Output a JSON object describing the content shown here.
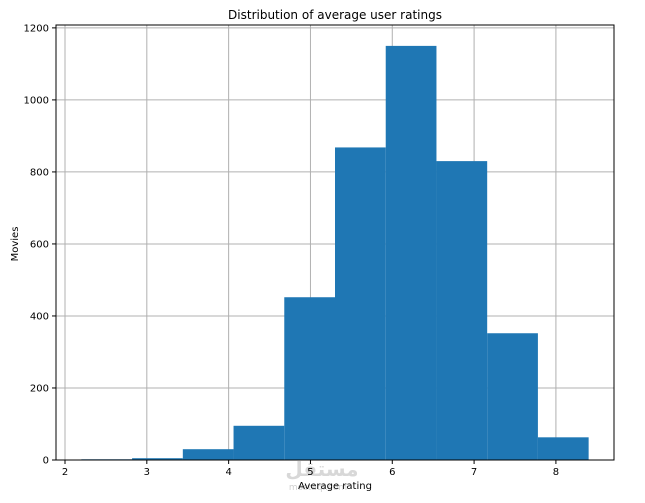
{
  "chart_data": {
    "type": "bar",
    "title": "Distribution of average user ratings",
    "xlabel": "Average rating",
    "ylabel": "Movies",
    "bin_edges": [
      2.2,
      2.82,
      3.44,
      4.06,
      4.68,
      5.3,
      5.92,
      6.54,
      7.16,
      7.78,
      8.4
    ],
    "values": [
      2,
      5,
      30,
      95,
      452,
      868,
      1150,
      830,
      352,
      63
    ],
    "xlim": [
      1.89,
      8.71
    ],
    "ylim": [
      0,
      1208
    ],
    "xticks": [
      2,
      3,
      4,
      5,
      6,
      7,
      8
    ],
    "yticks": [
      0,
      200,
      400,
      600,
      800,
      1000,
      1200
    ],
    "grid": true,
    "bar_color": "#1f77b4",
    "grid_color": "#b0b0b0"
  },
  "watermark": {
    "main": "مستقل",
    "sub": "mostaql.com"
  }
}
